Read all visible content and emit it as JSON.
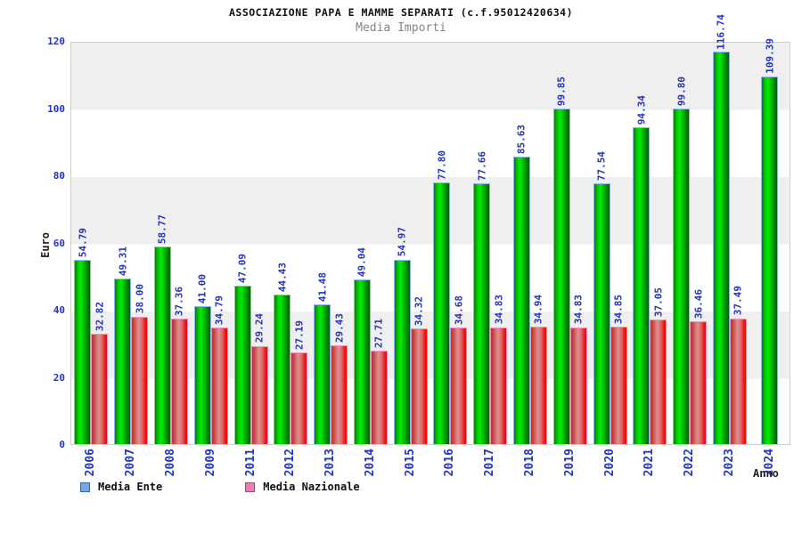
{
  "chart_data": {
    "type": "bar",
    "title": "ASSOCIAZIONE PAPA E MAMME SEPARATI (c.f.95012420634)",
    "subtitle": "Media Importi",
    "xlabel": "Anno",
    "ylabel": "Euro",
    "ylim": [
      0,
      120
    ],
    "yticks": [
      0,
      20,
      40,
      60,
      80,
      100,
      120
    ],
    "grid": "alternating-horizontal-bands",
    "legend_position": "bottom-left",
    "categories": [
      "2006",
      "2007",
      "2008",
      "2009",
      "2011",
      "2012",
      "2013",
      "2014",
      "2015",
      "2016",
      "2017",
      "2018",
      "2019",
      "2020",
      "2021",
      "2022",
      "2023",
      "2024"
    ],
    "series": [
      {
        "name": "Media Ente",
        "legend_color": "#76a9e2",
        "bar_color": "#00cc00",
        "values": [
          54.79,
          49.31,
          58.77,
          41.0,
          47.09,
          44.43,
          41.48,
          49.04,
          54.97,
          77.8,
          77.66,
          85.63,
          99.85,
          77.54,
          94.34,
          99.8,
          116.74,
          109.39
        ]
      },
      {
        "name": "Media Nazionale",
        "legend_color": "#ef7bb4",
        "bar_color": "#ee3333",
        "values": [
          32.82,
          38.0,
          37.36,
          34.79,
          29.24,
          27.19,
          29.43,
          27.71,
          34.32,
          34.68,
          34.83,
          34.94,
          34.83,
          34.85,
          37.05,
          36.46,
          37.49,
          null
        ]
      }
    ],
    "colors": {
      "axis_text": "#2233cc",
      "band_gray": "#efefef",
      "plot_border": "#cfcfcf",
      "title_text": "#111111",
      "subtitle_text": "#858585"
    }
  }
}
